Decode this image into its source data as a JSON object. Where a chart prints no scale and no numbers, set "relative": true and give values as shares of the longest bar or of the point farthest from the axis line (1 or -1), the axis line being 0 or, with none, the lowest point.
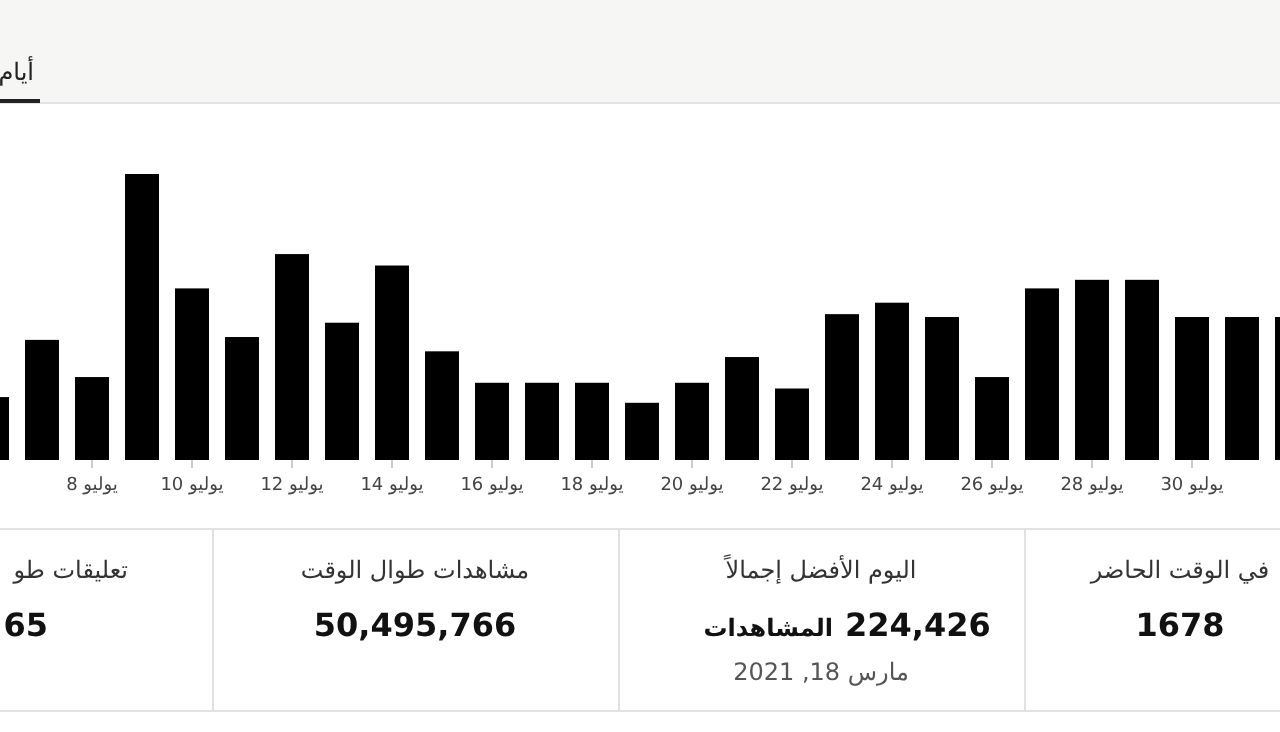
{
  "chart_data": [
    {
      "type": "bar",
      "relative": true,
      "color": "#000000",
      "categories": [
        null,
        null,
        "يوليو 8",
        null,
        "يوليو 10",
        null,
        "يوليو 12",
        null,
        "يوليو 14",
        null,
        "يوليو 16",
        null,
        "يوليو 18",
        null,
        "يوليو 20",
        null,
        "يوليو 22",
        null,
        "يوليو 24",
        null,
        "يوليو 26",
        null,
        "يوليو 28",
        null,
        "يوليو 30",
        null,
        null
      ],
      "values": [
        0.22,
        0.42,
        0.29,
        1,
        0.6,
        0.43,
        0.72,
        0.48,
        0.68,
        0.38,
        0.27,
        0.27,
        0.27,
        0.2,
        0.27,
        0.36,
        0.25,
        0.51,
        0.55,
        0.5,
        0.29,
        0.6,
        0.63,
        0.63,
        0.5,
        0.5,
        0.5
      ],
      "annotations": [
        "أيام"
      ]
    },
    {
      "type": "other",
      "categories": [
        "تعليقات طو",
        "مشاهدات طوال الوقت",
        "اليوم الأفضل إجمالاً",
        "في الوقت الحاضر"
      ],
      "value_labels": [
        "65",
        "50,495,766",
        "224,426",
        "1678"
      ],
      "annotations": [
        "المشاهدات",
        "مارس 18, 2021"
      ]
    }
  ]
}
